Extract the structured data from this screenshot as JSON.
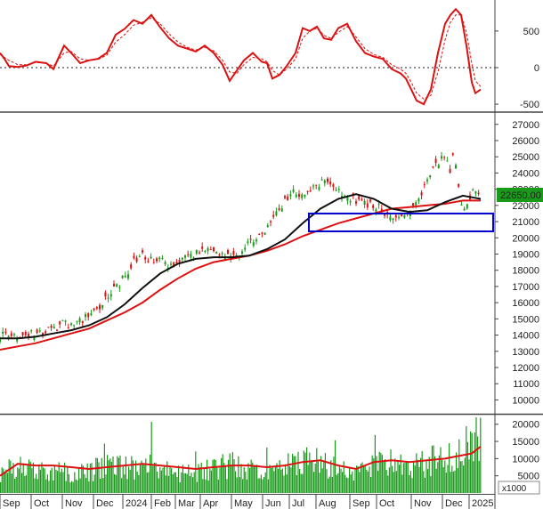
{
  "chart_data": [
    {
      "type": "line",
      "panel": "oscillator",
      "y_ticks": [
        "500",
        "0",
        "-500"
      ],
      "ylim": [
        -560,
        900
      ],
      "zero_line": "dashed",
      "colors": {
        "line": "#dd1111",
        "signal": "#dd1111"
      },
      "series": [
        {
          "style": "solid",
          "x": [
            0,
            5,
            10,
            20,
            30,
            40,
            52,
            60,
            72,
            80,
            90,
            100,
            110,
            120,
            130,
            140,
            150,
            160,
            170,
            180,
            190,
            200,
            210,
            220,
            230,
            240,
            250,
            258,
            266,
            274,
            284,
            294,
            300,
            306,
            314,
            322,
            332,
            340,
            348,
            356,
            364,
            372,
            380,
            390,
            400,
            410,
            420,
            430,
            440,
            450,
            456,
            462,
            468,
            476,
            484,
            492,
            500,
            506,
            512,
            518,
            524,
            530,
            534,
            540
          ],
          "y": [
            200,
            120,
            20,
            10,
            30,
            80,
            60,
            -20,
            300,
            200,
            60,
            100,
            120,
            200,
            450,
            530,
            650,
            600,
            720,
            550,
            400,
            300,
            260,
            220,
            300,
            200,
            40,
            -180,
            -40,
            100,
            200,
            80,
            60,
            -150,
            -100,
            20,
            200,
            540,
            500,
            560,
            400,
            380,
            540,
            600,
            360,
            200,
            150,
            120,
            -20,
            -80,
            -150,
            -300,
            -450,
            -500,
            -300,
            200,
            600,
            720,
            800,
            720,
            300,
            -200,
            -350,
            -300
          ]
        },
        {
          "style": "dashed",
          "x": [
            0,
            10,
            20,
            30,
            40,
            52,
            60,
            72,
            80,
            90,
            100,
            110,
            120,
            130,
            140,
            150,
            160,
            170,
            180,
            190,
            200,
            210,
            220,
            230,
            240,
            250,
            258,
            266,
            274,
            284,
            294,
            300,
            306,
            314,
            322,
            332,
            340,
            348,
            356,
            364,
            372,
            380,
            390,
            400,
            410,
            420,
            430,
            440,
            450,
            456,
            462,
            468,
            476,
            484,
            492,
            500,
            506,
            512,
            518,
            524,
            530,
            534,
            540
          ],
          "y": [
            180,
            100,
            40,
            40,
            70,
            60,
            20,
            200,
            220,
            120,
            100,
            110,
            170,
            350,
            450,
            580,
            620,
            680,
            600,
            460,
            350,
            280,
            240,
            280,
            230,
            100,
            -60,
            -80,
            40,
            140,
            120,
            80,
            -40,
            -100,
            -20,
            120,
            400,
            500,
            540,
            440,
            400,
            480,
            560,
            420,
            260,
            180,
            140,
            40,
            -20,
            -80,
            -200,
            -350,
            -430,
            -380,
            -60,
            380,
            620,
            720,
            720,
            480,
            60,
            -180,
            -260
          ]
        }
      ]
    },
    {
      "type": "candlestick",
      "panel": "price",
      "price_label": "22650.00",
      "y_ticks": [
        "27000",
        "26000",
        "25000",
        "24000",
        "23000",
        "22000",
        "21000",
        "20000",
        "19000",
        "18000",
        "17000",
        "16000",
        "15000",
        "14000",
        "13000",
        "12000",
        "11000",
        "10000"
      ],
      "ylim": [
        9200,
        27700
      ],
      "colors": {
        "up": "#1a9a1a",
        "down": "#dd1111",
        "ma_short": "#111111",
        "ma_long": "#dd1111",
        "box": "#0000cc",
        "price_label_bg": "#1a9a1a"
      },
      "ohlc_anchors": {
        "x": [
          0,
          10,
          20,
          30,
          40,
          50,
          60,
          70,
          80,
          90,
          100,
          110,
          120,
          130,
          140,
          150,
          160,
          170,
          180,
          190,
          200,
          210,
          220,
          230,
          240,
          250,
          260,
          270,
          280,
          290,
          300,
          310,
          320,
          330,
          340,
          350,
          360,
          370,
          380,
          390,
          400,
          410,
          420,
          430,
          440,
          450,
          460,
          470,
          480,
          490,
          500,
          505,
          510,
          515,
          520,
          525,
          530,
          535,
          540
        ],
        "close": [
          14000,
          13900,
          13800,
          14000,
          14200,
          14100,
          14400,
          14700,
          14600,
          14900,
          15200,
          15700,
          16300,
          16900,
          17600,
          18500,
          18900,
          18600,
          18800,
          18300,
          18600,
          18700,
          19000,
          19200,
          19100,
          19000,
          18700,
          19000,
          19700,
          20100,
          20600,
          21400,
          22300,
          22800,
          22500,
          23000,
          23400,
          23200,
          22900,
          22600,
          22300,
          22100,
          22000,
          21700,
          21000,
          21400,
          21500,
          22200,
          23500,
          24500,
          25000,
          24000,
          25500,
          23000,
          21500,
          22300,
          22800,
          23000,
          22650
        ]
      },
      "ma_short": {
        "x": [
          0,
          20,
          40,
          60,
          80,
          100,
          120,
          140,
          160,
          180,
          200,
          220,
          240,
          260,
          280,
          300,
          320,
          340,
          360,
          380,
          400,
          420,
          440,
          460,
          480,
          500,
          510,
          520,
          530,
          540
        ],
        "y": [
          13800,
          13800,
          13900,
          14100,
          14300,
          14600,
          15100,
          15900,
          16900,
          17800,
          18400,
          18700,
          18800,
          18800,
          18900,
          19300,
          19900,
          20900,
          21800,
          22400,
          22700,
          22400,
          21800,
          21600,
          21700,
          22200,
          22400,
          22600,
          22500,
          22400
        ]
      },
      "ma_long": {
        "x": [
          0,
          20,
          40,
          60,
          80,
          100,
          120,
          140,
          160,
          180,
          200,
          220,
          240,
          260,
          280,
          300,
          320,
          340,
          360,
          380,
          400,
          420,
          440,
          460,
          480,
          500,
          510,
          520,
          530,
          540
        ],
        "y": [
          13100,
          13300,
          13500,
          13800,
          14100,
          14400,
          14900,
          15400,
          16000,
          16800,
          17500,
          18100,
          18500,
          18700,
          18900,
          19200,
          19600,
          20100,
          20500,
          20900,
          21200,
          21500,
          21800,
          21900,
          22000,
          22100,
          22200,
          22300,
          22300,
          22300
        ]
      },
      "support_box": {
        "x_start": 347,
        "x_end": 554,
        "y_low": 20400,
        "y_high": 21500
      }
    },
    {
      "type": "bar",
      "panel": "volume",
      "y_ticks": [
        "20000",
        "15000",
        "10000",
        "5000"
      ],
      "unit_label": "x1000",
      "ylim": [
        0,
        22000
      ],
      "colors": {
        "bars": "#1a9a1a",
        "ma": "#dd1111"
      },
      "volume_anchors": {
        "x": [
          0,
          20,
          40,
          60,
          80,
          100,
          120,
          140,
          160,
          180,
          200,
          220,
          240,
          260,
          280,
          300,
          320,
          340,
          360,
          380,
          400,
          420,
          440,
          460,
          480,
          500,
          510,
          520,
          530,
          540
        ],
        "y": [
          7000,
          8000,
          7000,
          7500,
          6000,
          7000,
          9000,
          8000,
          9000,
          8000,
          6500,
          6000,
          8000,
          9000,
          7500,
          6000,
          8000,
          12000,
          9000,
          8000,
          6000,
          9000,
          11000,
          8000,
          10000,
          11000,
          13000,
          15000,
          14000,
          18000
        ]
      },
      "volume_ma": {
        "x": [
          0,
          20,
          40,
          60,
          80,
          100,
          120,
          140,
          160,
          180,
          200,
          220,
          240,
          260,
          280,
          300,
          320,
          340,
          360,
          380,
          400,
          420,
          440,
          460,
          480,
          500,
          510,
          520,
          530,
          540
        ],
        "y": [
          5000,
          8500,
          8000,
          8000,
          7500,
          7000,
          7500,
          8000,
          8500,
          8000,
          7500,
          7000,
          7500,
          8000,
          8000,
          7500,
          8000,
          9000,
          9500,
          8000,
          7000,
          9000,
          9500,
          9000,
          9500,
          10000,
          10500,
          11000,
          11500,
          13500
        ]
      }
    }
  ],
  "x_axis": {
    "labels": [
      "Sep",
      "Oct",
      "Nov",
      "Dec",
      "2024",
      "Feb",
      "Mar",
      "Apr",
      "May",
      "Jun",
      "Jul",
      "Aug",
      "Sep",
      "Oct",
      "Nov",
      "Dec",
      "2025"
    ],
    "label_x": [
      0,
      35,
      70,
      105,
      138,
      170,
      197,
      225,
      260,
      295,
      325,
      355,
      393,
      423,
      462,
      497,
      527
    ]
  }
}
